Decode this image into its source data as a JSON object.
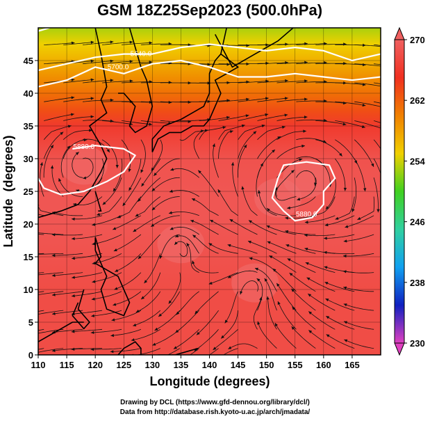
{
  "chart_data": {
    "type": "heatmap",
    "title": "GSM 18Z25Sep2023 (500.0hPa)",
    "xlabel": "Longitude (degrees)",
    "ylabel": "Latitude  (degrees)",
    "xlim": [
      110,
      170
    ],
    "ylim": [
      0,
      50
    ],
    "xticks": [
      110,
      115,
      120,
      125,
      130,
      135,
      140,
      145,
      150,
      155,
      160,
      165
    ],
    "yticks": [
      0,
      5,
      10,
      15,
      20,
      25,
      30,
      35,
      40,
      45
    ],
    "grid": true,
    "colorbar": {
      "orientation": "vertical",
      "placement": "right",
      "min": 230,
      "max": 270,
      "ticks": [
        230,
        238,
        246,
        254,
        262,
        270
      ],
      "colors": [
        "#e040c0",
        "#1020c0",
        "#10a0f0",
        "#30d0a0",
        "#40d020",
        "#f0d000",
        "#f08000",
        "#f03020",
        "#f06060"
      ]
    },
    "temperature_field_K": {
      "lat": [
        0,
        5,
        10,
        15,
        20,
        25,
        30,
        35,
        37.5,
        40,
        42.5,
        45,
        47.5,
        50
      ],
      "values": [
        268,
        268,
        268,
        268.5,
        269,
        269,
        268.5,
        266,
        263,
        261,
        259,
        257,
        255,
        253
      ]
    },
    "contours": [
      {
        "level": "5880.0",
        "label": "5880.0"
      },
      {
        "level": "5700.0",
        "label": "5700.0"
      },
      {
        "level": "5640.0",
        "label": "5640.0"
      }
    ],
    "vortex_centers": [
      {
        "lon": 118,
        "lat": 29
      },
      {
        "lon": 135,
        "lat": 17
      },
      {
        "lon": 152,
        "lat": 24
      },
      {
        "lon": 148,
        "lat": 11
      },
      {
        "lon": 157,
        "lat": 27
      }
    ]
  },
  "credits": {
    "line1": "Drawing by DCL (https://www.gfd-dennou.org/library/dcl/)",
    "line2": "Data from http://database.rish.kyoto-u.ac.jp/arch/jmadata/"
  }
}
